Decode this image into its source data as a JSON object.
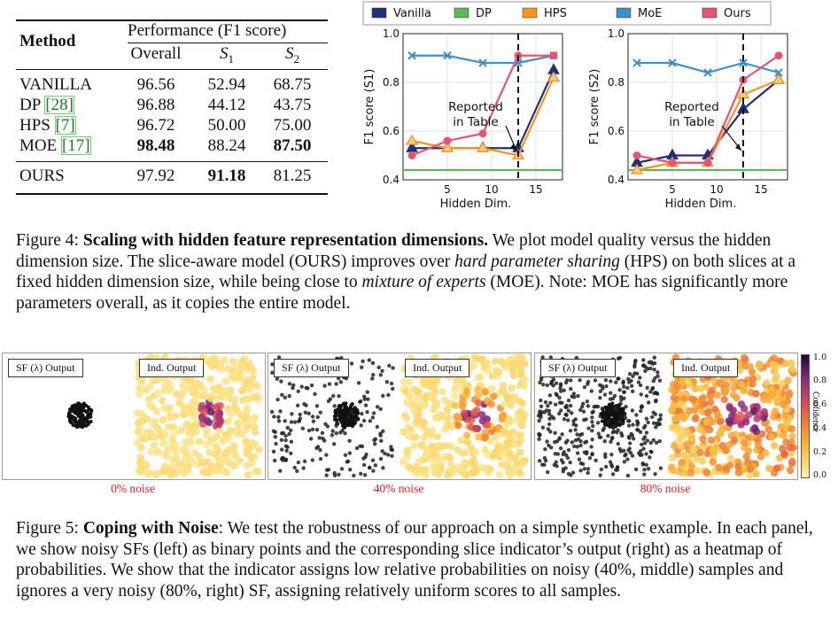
{
  "table": {
    "header": {
      "method": "Method",
      "performance": "Performance (F1 score)",
      "overall": "Overall",
      "s1": "S",
      "s1_sub": "1",
      "s2": "S",
      "s2_sub": "2"
    },
    "rows": [
      {
        "method": "VANILLA",
        "ref": "",
        "overall": "96.56",
        "s1": "52.94",
        "s2": "68.75"
      },
      {
        "method": "DP ",
        "ref": "[28]",
        "overall": "96.88",
        "s1": "44.12",
        "s2": "43.75"
      },
      {
        "method": "HPS ",
        "ref": "[7]",
        "overall": "96.72",
        "s1": "50.00",
        "s2": "75.00"
      },
      {
        "method": "MOE ",
        "ref": "[17]",
        "overall": "98.48",
        "s1": "88.24",
        "s2": "87.50"
      },
      {
        "method": "OURS",
        "ref": "",
        "overall": "97.92",
        "s1": "91.18",
        "s2": "81.25"
      }
    ]
  },
  "chart_data": [
    {
      "type": "line",
      "xlabel": "Hidden Dim.",
      "ylabel": "F1 score (S1)",
      "xlim": [
        0,
        18
      ],
      "ylim": [
        0.4,
        1.0
      ],
      "xticks": [
        5,
        10,
        15
      ],
      "yticks": [
        0.4,
        0.6,
        0.8,
        1.0
      ],
      "vline_x": 13,
      "annotation": [
        "Reported",
        "in Table"
      ],
      "x": [
        1,
        5,
        9,
        13,
        17
      ],
      "series": [
        {
          "name": "Vanilla",
          "color": "#1f2f7a",
          "marker": "tri-filled",
          "values": [
            0.53,
            0.53,
            0.53,
            0.53,
            0.85
          ]
        },
        {
          "name": "DP",
          "color": "#5cb85c",
          "marker": "none",
          "values": [
            0.44,
            0.44,
            0.44,
            0.44,
            0.44
          ]
        },
        {
          "name": "HPS",
          "color": "#f7941d",
          "marker": "tri-open",
          "values": [
            0.56,
            0.53,
            0.53,
            0.5,
            0.82
          ]
        },
        {
          "name": "MoE",
          "color": "#3d8fc8",
          "marker": "x",
          "values": [
            0.91,
            0.91,
            0.88,
            0.88,
            0.91
          ]
        },
        {
          "name": "Ours",
          "color": "#e8546f",
          "marker": "dot",
          "values": [
            0.5,
            0.56,
            0.59,
            0.91,
            0.91
          ]
        }
      ]
    },
    {
      "type": "line",
      "xlabel": "Hidden Dim.",
      "ylabel": "F1 score (S2)",
      "xlim": [
        0,
        18
      ],
      "ylim": [
        0.4,
        1.0
      ],
      "xticks": [
        5,
        10,
        15
      ],
      "yticks": [
        0.4,
        0.6,
        0.8,
        1.0
      ],
      "vline_x": 13,
      "annotation": [
        "Reported",
        "in Table"
      ],
      "x": [
        1,
        5,
        9,
        13,
        17
      ],
      "series": [
        {
          "name": "Vanilla",
          "color": "#1f2f7a",
          "marker": "tri-filled",
          "values": [
            0.47,
            0.5,
            0.5,
            0.69,
            0.81
          ]
        },
        {
          "name": "DP",
          "color": "#5cb85c",
          "marker": "none",
          "values": [
            0.44,
            0.44,
            0.44,
            0.44,
            0.44
          ]
        },
        {
          "name": "HPS",
          "color": "#f7941d",
          "marker": "tri-open",
          "values": [
            0.44,
            0.47,
            0.47,
            0.75,
            0.81
          ]
        },
        {
          "name": "MoE",
          "color": "#3d8fc8",
          "marker": "x",
          "values": [
            0.88,
            0.88,
            0.84,
            0.88,
            0.84
          ]
        },
        {
          "name": "Ours",
          "color": "#e8546f",
          "marker": "dot",
          "values": [
            0.5,
            0.47,
            0.47,
            0.81,
            0.91
          ]
        }
      ]
    }
  ],
  "legend": [
    "Vanilla",
    "DP",
    "HPS",
    "MoE",
    "Ours"
  ],
  "fig4": {
    "label": "Figure 4: ",
    "bold": "Scaling with hidden feature representation dimensions.",
    "t1": " We plot model quality versus the hidden dimension size. The slice-aware model (",
    "ours": "OURS",
    "t2": ") improves over ",
    "hps": "hard parameter sharing",
    "t3": " (HPS) on both slices at a fixed hidden dimension size, while being close to ",
    "moe_em": "mixture of experts",
    "t4": " (",
    "moe": "MOE",
    "t5": "). Note: ",
    "moe2": "MOE",
    "t6": " has significantly more parameters overall, as it copies the entire model."
  },
  "fig5": {
    "label": "Figure 5: ",
    "bold": "Coping with Noise",
    "text": ": We test the robustness of our approach on a simple synthetic example. In each panel, we show noisy SFs (left) as binary points and the corresponding slice indicator’s output (right) as a heatmap of probabilities. We show that the indicator assigns low relative probabilities on noisy (40%, middle) samples and ignores a very noisy (80%, right) SF, assigning relatively uniform scores to all samples."
  },
  "noise_panels": [
    {
      "sf_label": "SF (λ) Output",
      "ind_label": "Ind. Output",
      "noise_label": "0% noise",
      "noise_fraction": 0.0
    },
    {
      "sf_label": "SF (λ) Output",
      "ind_label": "Ind. Output",
      "noise_label": "40% noise",
      "noise_fraction": 0.4
    },
    {
      "sf_label": "SF (λ) Output",
      "ind_label": "Ind. Output",
      "noise_label": "80% noise",
      "noise_fraction": 0.8
    }
  ],
  "colorbar": {
    "label": "Confidence",
    "ticks": [
      "1.0",
      "0.8",
      "0.6",
      "0.4",
      "0.2",
      "0.0"
    ]
  }
}
